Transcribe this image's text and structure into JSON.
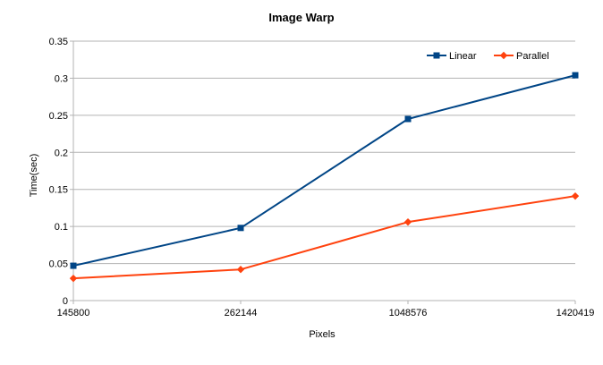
{
  "chart_data": {
    "type": "line",
    "title": "Image Warp",
    "xlabel": "Pixels",
    "ylabel": "Time(sec)",
    "categories": [
      "145800",
      "262144",
      "1048576",
      "1420419"
    ],
    "ylim": [
      0,
      0.35
    ],
    "yticks": [
      0,
      0.05,
      0.1,
      0.15,
      0.2,
      0.25,
      0.3,
      0.35
    ],
    "ytick_labels": [
      "0",
      "0.05",
      "0.1",
      "0.15",
      "0.2",
      "0.25",
      "0.3",
      "0.35"
    ],
    "grid": true,
    "legend_position": "top-right",
    "series": [
      {
        "name": "Linear",
        "values": [
          0.047,
          0.098,
          0.245,
          0.304
        ],
        "color": "#004586",
        "marker": "square"
      },
      {
        "name": "Parallel",
        "values": [
          0.03,
          0.042,
          0.106,
          0.141
        ],
        "color": "#ff420e",
        "marker": "diamond"
      }
    ]
  }
}
